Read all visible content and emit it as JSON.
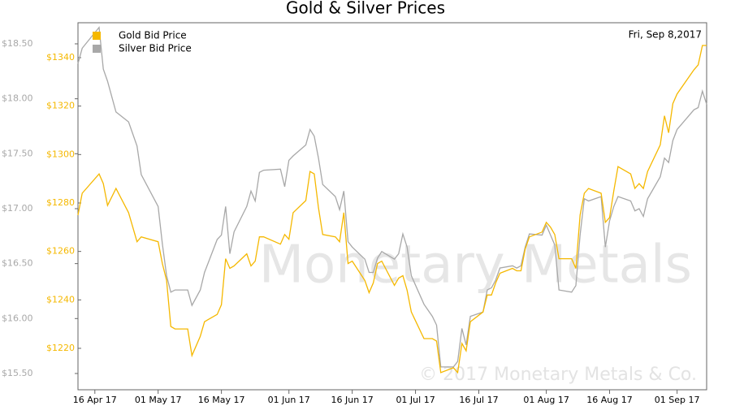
{
  "chart_data": {
    "type": "line",
    "title": "Gold & Silver Prices",
    "date_label": "Fri, Sep 8,2017",
    "watermark": "Monetary Metals",
    "copyright": "© 2017 Monetary Metals & Co.",
    "x": [
      "2017-04-12",
      "2017-04-13",
      "2017-04-17",
      "2017-04-18",
      "2017-04-19",
      "2017-04-21",
      "2017-04-24",
      "2017-04-26",
      "2017-04-27",
      "2017-05-01",
      "2017-05-02",
      "2017-05-03",
      "2017-05-04",
      "2017-05-05",
      "2017-05-08",
      "2017-05-09",
      "2017-05-11",
      "2017-05-12",
      "2017-05-15",
      "2017-05-16",
      "2017-05-17",
      "2017-05-18",
      "2017-05-19",
      "2017-05-22",
      "2017-05-23",
      "2017-05-24",
      "2017-05-25",
      "2017-05-26",
      "2017-05-30",
      "2017-05-31",
      "2017-06-01",
      "2017-06-02",
      "2017-06-05",
      "2017-06-06",
      "2017-06-07",
      "2017-06-08",
      "2017-06-09",
      "2017-06-12",
      "2017-06-13",
      "2017-06-14",
      "2017-06-15",
      "2017-06-16",
      "2017-06-19",
      "2017-06-20",
      "2017-06-21",
      "2017-06-22",
      "2017-06-23",
      "2017-06-26",
      "2017-06-27",
      "2017-06-28",
      "2017-06-29",
      "2017-06-30",
      "2017-07-03",
      "2017-07-05",
      "2017-07-06",
      "2017-07-07",
      "2017-07-10",
      "2017-07-11",
      "2017-07-12",
      "2017-07-13",
      "2017-07-14",
      "2017-07-17",
      "2017-07-18",
      "2017-07-19",
      "2017-07-20",
      "2017-07-21",
      "2017-07-24",
      "2017-07-25",
      "2017-07-26",
      "2017-07-27",
      "2017-07-28",
      "2017-07-31",
      "2017-08-01",
      "2017-08-02",
      "2017-08-03",
      "2017-08-04",
      "2017-08-07",
      "2017-08-08",
      "2017-08-09",
      "2017-08-10",
      "2017-08-11",
      "2017-08-14",
      "2017-08-15",
      "2017-08-16",
      "2017-08-17",
      "2017-08-18",
      "2017-08-21",
      "2017-08-22",
      "2017-08-23",
      "2017-08-24",
      "2017-08-25",
      "2017-08-28",
      "2017-08-29",
      "2017-08-30",
      "2017-08-31",
      "2017-09-01",
      "2017-09-05",
      "2017-09-06",
      "2017-09-07",
      "2017-09-08"
    ],
    "series": [
      {
        "name": "Gold Bid Price",
        "color": "#f5b800",
        "axis": "y2",
        "values": [
          1275,
          1284,
          1292,
          1288,
          1279,
          1286,
          1276,
          1264,
          1266,
          1264,
          1255,
          1248,
          1229,
          1228,
          1228,
          1217,
          1225,
          1231,
          1234,
          1238,
          1257,
          1253,
          1254,
          1259,
          1254,
          1256,
          1266,
          1266,
          1263,
          1267,
          1265,
          1276,
          1281,
          1293,
          1292,
          1278,
          1267,
          1266,
          1264,
          1276,
          1255,
          1256,
          1248,
          1243,
          1247,
          1255,
          1256,
          1246,
          1249,
          1250,
          1244,
          1235,
          1224,
          1224,
          1223,
          1210,
          1212,
          1210,
          1222,
          1219,
          1231,
          1235,
          1242,
          1242,
          1247,
          1251,
          1253,
          1252,
          1252,
          1261,
          1266,
          1268,
          1272,
          1270,
          1267,
          1257,
          1257,
          1253,
          1275,
          1284,
          1286,
          1284,
          1272,
          1274,
          1285,
          1295,
          1292,
          1286,
          1288,
          1286,
          1293,
          1304,
          1316,
          1309,
          1321,
          1325,
          1335,
          1337,
          1345,
          1345
        ]
      },
      {
        "name": "Silver Bid Price",
        "color": "#a8a8a8",
        "values": [
          18.32,
          18.46,
          18.65,
          18.27,
          18.16,
          17.88,
          17.79,
          17.57,
          17.31,
          17.02,
          16.68,
          16.39,
          16.24,
          16.26,
          16.26,
          16.12,
          16.26,
          16.42,
          16.72,
          16.76,
          17.02,
          16.59,
          16.79,
          17.02,
          17.16,
          17.07,
          17.33,
          17.35,
          17.36,
          17.2,
          17.44,
          17.48,
          17.58,
          17.72,
          17.66,
          17.46,
          17.22,
          17.11,
          16.99,
          17.16,
          16.7,
          16.65,
          16.54,
          16.42,
          16.42,
          16.55,
          16.61,
          16.54,
          16.59,
          16.77,
          16.65,
          16.39,
          16.13,
          16.02,
          15.94,
          15.56,
          15.56,
          15.61,
          15.91,
          15.76,
          16.02,
          16.06,
          16.26,
          16.28,
          16.35,
          16.46,
          16.48,
          16.46,
          16.48,
          16.65,
          16.77,
          16.76,
          16.85,
          16.76,
          16.67,
          16.26,
          16.24,
          16.3,
          16.76,
          17.09,
          17.07,
          17.11,
          16.65,
          16.89,
          17.02,
          17.11,
          17.07,
          16.98,
          17,
          16.93,
          17.09,
          17.29,
          17.46,
          17.42,
          17.62,
          17.72,
          17.9,
          17.92,
          18.07,
          17.95
        ]
      }
    ],
    "xlim": [
      "2017-04-12",
      "2017-09-08"
    ],
    "xticks": [
      {
        "value": "2017-04-16",
        "label": "16 Apr 17"
      },
      {
        "value": "2017-05-01",
        "label": "01 May 17"
      },
      {
        "value": "2017-05-16",
        "label": "16 May 17"
      },
      {
        "value": "2017-06-01",
        "label": "01 Jun 17"
      },
      {
        "value": "2017-06-16",
        "label": "16 Jun 17"
      },
      {
        "value": "2017-07-01",
        "label": "01 Jul 17"
      },
      {
        "value": "2017-07-16",
        "label": "16 Jul 17"
      },
      {
        "value": "2017-08-01",
        "label": "01 Aug 17"
      },
      {
        "value": "2017-08-16",
        "label": "16 Aug 17"
      },
      {
        "value": "2017-09-01",
        "label": "01 Sep 17"
      }
    ],
    "ylim": [
      15.352,
      18.692
    ],
    "yticks": [
      {
        "value": 15.5,
        "label": "$15.50"
      },
      {
        "value": 16,
        "label": "$16.00"
      },
      {
        "value": 16.5,
        "label": "$16.50"
      },
      {
        "value": 17,
        "label": "$17.00"
      },
      {
        "value": 17.5,
        "label": "$17.50"
      },
      {
        "value": 18,
        "label": "$18.00"
      },
      {
        "value": 18.5,
        "label": "$18.50"
      }
    ],
    "y2lim": [
      1202.9,
      1354.4
    ],
    "y2ticks": [
      {
        "value": 1220,
        "label": "$1220"
      },
      {
        "value": 1240,
        "label": "$1240"
      },
      {
        "value": 1260,
        "label": "$1260"
      },
      {
        "value": 1280,
        "label": "$1280"
      },
      {
        "value": 1300,
        "label": "$1300"
      },
      {
        "value": 1320,
        "label": "$1320"
      },
      {
        "value": 1340,
        "label": "$1340"
      }
    ],
    "legend": "upper-left"
  }
}
